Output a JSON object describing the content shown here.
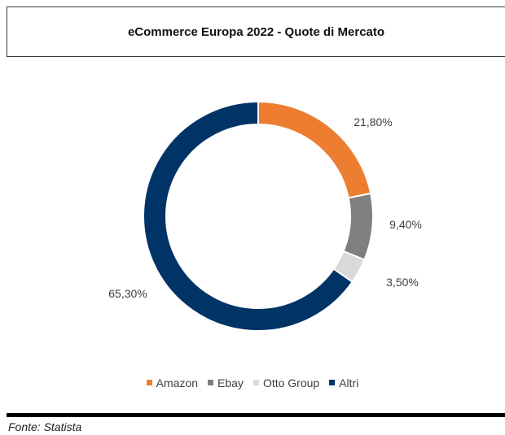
{
  "title": "eCommerce Europa 2022 - Quote di Mercato",
  "source": "Fonte: Statista",
  "chart_data": {
    "type": "pie",
    "donut": true,
    "title": "eCommerce Europa 2022 - Quote di Mercato",
    "categories": [
      "Amazon",
      "Ebay",
      "Otto Group",
      "Altri"
    ],
    "values": [
      21.8,
      9.4,
      3.5,
      65.3
    ],
    "labels": [
      "21,80%",
      "9,40%",
      "3,50%",
      "65,30%"
    ],
    "colors": [
      "#ED7D31",
      "#7F7F7F",
      "#D9D9D9",
      "#003366"
    ],
    "legend_position": "bottom"
  }
}
